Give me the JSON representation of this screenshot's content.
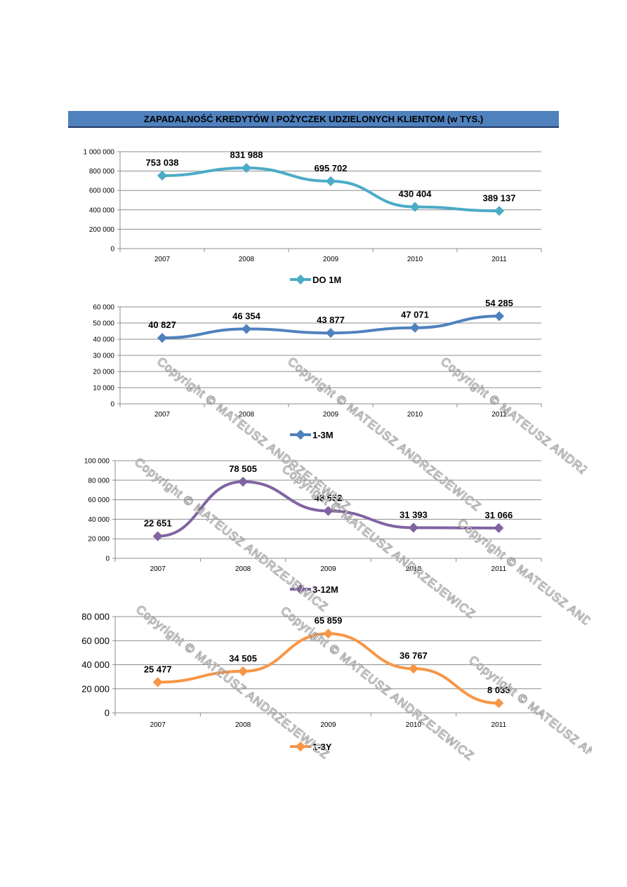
{
  "header": {
    "title": "ZAPADALNOŚĆ KREDYTÓW I POŻYCZEK UDZIELONYCH KLIENTOM (w TYS.)"
  },
  "watermark": {
    "text": "Copyright © MATEUSZ ANDRZEJEWICZ"
  },
  "chart_data": [
    {
      "type": "line",
      "categories": [
        "2007",
        "2008",
        "2009",
        "2010",
        "2011"
      ],
      "series": [
        {
          "name": "DO 1M",
          "values": [
            753038,
            831988,
            695702,
            430404,
            389137
          ],
          "labels": [
            "753 038",
            "831 988",
            "695 702",
            "430 404",
            "389 137"
          ]
        }
      ],
      "ylim": [
        0,
        1000000
      ],
      "yticks": [
        "0",
        "200 000",
        "400 000",
        "600 000",
        "800 000",
        "1 000 000"
      ],
      "color": "#4bacc6",
      "legend": "bottom"
    },
    {
      "type": "line",
      "categories": [
        "2007",
        "2008",
        "2009",
        "2010",
        "2011"
      ],
      "series": [
        {
          "name": "1-3M",
          "values": [
            40827,
            46354,
            43877,
            47071,
            54285
          ],
          "labels": [
            "40 827",
            "46 354",
            "43 877",
            "47 071",
            "54 285"
          ]
        }
      ],
      "ylim": [
        0,
        60000
      ],
      "yticks": [
        "0",
        "10 000",
        "20 000",
        "30 000",
        "40 000",
        "50 000",
        "60 000"
      ],
      "color": "#4f81bd",
      "legend": "bottom"
    },
    {
      "type": "line",
      "categories": [
        "2007",
        "2008",
        "2009",
        "2010",
        "2011"
      ],
      "series": [
        {
          "name": "3-12M",
          "values": [
            22651,
            78505,
            48552,
            31393,
            31066
          ],
          "labels": [
            "22 651",
            "78 505",
            "48 552",
            "31 393",
            "31 066"
          ]
        }
      ],
      "ylim": [
        0,
        100000
      ],
      "yticks": [
        "0",
        "20 000",
        "40 000",
        "60 000",
        "80 000",
        "100 000"
      ],
      "color": "#8064a2",
      "legend": "bottom"
    },
    {
      "type": "line",
      "categories": [
        "2007",
        "2008",
        "2009",
        "2010",
        "2011"
      ],
      "series": [
        {
          "name": "1-3Y",
          "values": [
            25477,
            34505,
            65859,
            36767,
            8035
          ],
          "labels": [
            "25 477",
            "34 505",
            "65 859",
            "36 767",
            "8 035"
          ]
        }
      ],
      "ylim": [
        0,
        80000
      ],
      "yticks": [
        "0",
        "20 000",
        "40 000",
        "60 000",
        "80 000"
      ],
      "color": "#f79646",
      "legend": "bottom"
    }
  ]
}
